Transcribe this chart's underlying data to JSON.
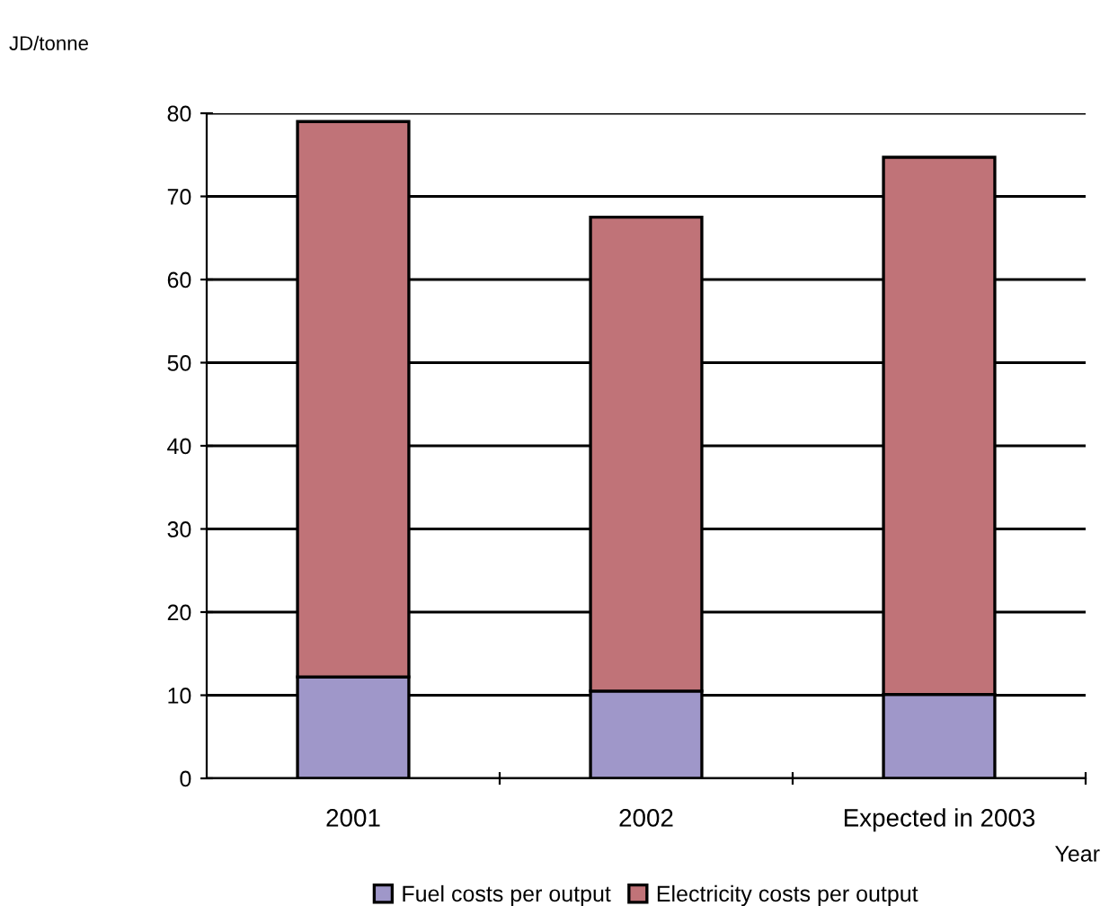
{
  "chart_data": {
    "type": "bar",
    "stacked": true,
    "ylabel": "JD/tonne",
    "xlabel": "Year",
    "categories": [
      "2001",
      "2002",
      "Expected in 2003"
    ],
    "series": [
      {
        "name": "Fuel costs per output",
        "color": "#9f97c9",
        "values": [
          12.2,
          10.5,
          10.1
        ]
      },
      {
        "name": "Electricity costs per output",
        "color": "#c07378",
        "values": [
          66.8,
          57.0,
          64.6
        ]
      }
    ],
    "ylim": [
      0,
      80
    ],
    "yticks": [
      0,
      10,
      20,
      30,
      40,
      50,
      60,
      70,
      80
    ],
    "grid": "y",
    "legend": "bottom"
  }
}
